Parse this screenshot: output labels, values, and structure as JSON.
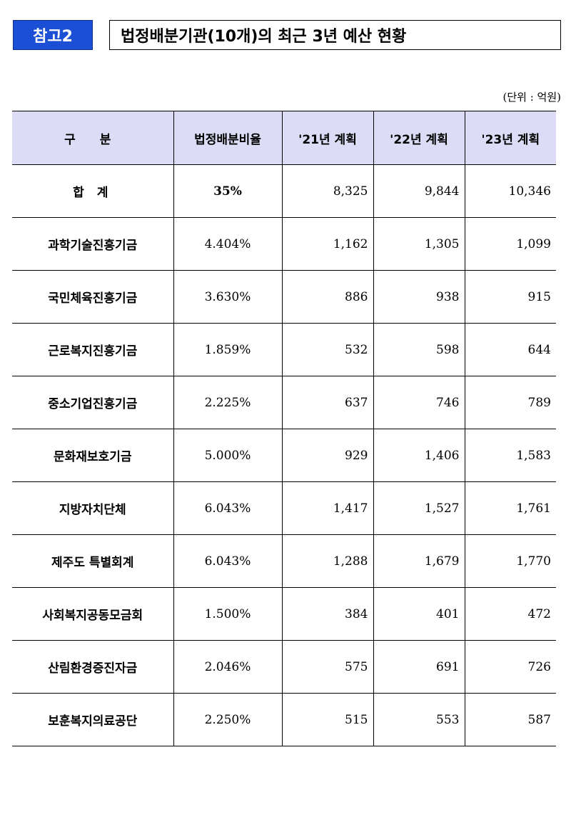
{
  "header": {
    "badge": "참고2",
    "title": "법정배분기관(10개)의 최근 3년 예산 현황"
  },
  "unit_label": "(단위 : 억원)",
  "table": {
    "columns": [
      "구 분",
      "법정배분비율",
      "'21년 계획",
      "'22년 계획",
      "'23년 계획"
    ],
    "rows": [
      {
        "name": "합 계",
        "rate": "35%",
        "y21": "8,325",
        "y22": "9,844",
        "y23": "10,346"
      },
      {
        "name": "과학기술진흥기금",
        "rate": "4.404%",
        "y21": "1,162",
        "y22": "1,305",
        "y23": "1,099"
      },
      {
        "name": "국민체육진흥기금",
        "rate": "3.630%",
        "y21": "886",
        "y22": "938",
        "y23": "915"
      },
      {
        "name": "근로복지진흥기금",
        "rate": "1.859%",
        "y21": "532",
        "y22": "598",
        "y23": "644"
      },
      {
        "name": "중소기업진흥기금",
        "rate": "2.225%",
        "y21": "637",
        "y22": "746",
        "y23": "789"
      },
      {
        "name": "문화재보호기금",
        "rate": "5.000%",
        "y21": "929",
        "y22": "1,406",
        "y23": "1,583"
      },
      {
        "name": "지방자치단체",
        "rate": "6.043%",
        "y21": "1,417",
        "y22": "1,527",
        "y23": "1,761"
      },
      {
        "name": "제주도 특별회계",
        "rate": "6.043%",
        "y21": "1,288",
        "y22": "1,679",
        "y23": "1,770"
      },
      {
        "name": "사회복지공동모금회",
        "rate": "1.500%",
        "y21": "384",
        "y22": "401",
        "y23": "472"
      },
      {
        "name": "산림환경증진자금",
        "rate": "2.046%",
        "y21": "575",
        "y22": "691",
        "y23": "726"
      },
      {
        "name": "보훈복지의료공단",
        "rate": "2.250%",
        "y21": "515",
        "y22": "553",
        "y23": "587"
      }
    ]
  }
}
